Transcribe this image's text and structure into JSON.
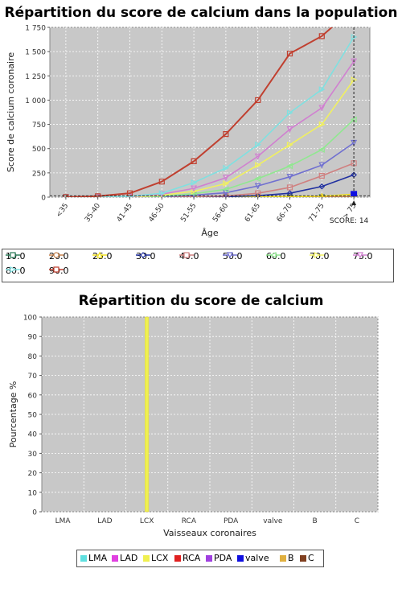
{
  "charts": {
    "distribution": {
      "title": "Répartition du score de calcium dans la population",
      "marker_label": "SCORE: 14"
    },
    "vessels": {
      "title": "Répartition du score de calcium"
    }
  },
  "chart_data": [
    {
      "type": "line",
      "title": "Répartition du score de calcium dans la population",
      "xlabel": "Âge",
      "ylabel": "Score de calcium coronaire",
      "categories": [
        "<35",
        "35-40",
        "41-45",
        "46-50",
        "51-55",
        "56-60",
        "61-65",
        "66-70",
        "71-75",
        "> 75"
      ],
      "ylim": [
        0,
        1750
      ],
      "yticks": [
        0,
        250,
        500,
        750,
        1000,
        1250,
        1500,
        1750
      ],
      "ytick_labels": [
        "0",
        "250",
        "500",
        "750",
        "1 000",
        "1 250",
        "1 500",
        "1 750"
      ],
      "grid": true,
      "legend_position": "bottom",
      "series": [
        {
          "name": "10.0",
          "color": "#2e7d5b",
          "marker": "square",
          "values": [
            0,
            0,
            0,
            0,
            0,
            0,
            0,
            0,
            0,
            0
          ]
        },
        {
          "name": "20.0",
          "color": "#c8844e",
          "marker": "circle",
          "values": [
            0,
            0,
            0,
            0,
            0,
            0,
            0,
            0,
            2,
            5
          ]
        },
        {
          "name": "25.0",
          "color": "#f0e020",
          "marker": "triangle-up",
          "values": [
            0,
            0,
            0,
            0,
            0,
            0,
            2,
            5,
            10,
            30
          ]
        },
        {
          "name": "30.0",
          "color": "#2030a0",
          "marker": "diamond",
          "values": [
            0,
            0,
            0,
            0,
            2,
            5,
            15,
            40,
            110,
            230
          ]
        },
        {
          "name": "40.0",
          "color": "#d08080",
          "marker": "square",
          "values": [
            0,
            0,
            0,
            2,
            5,
            12,
            40,
            100,
            220,
            350
          ]
        },
        {
          "name": "50.0",
          "color": "#7070d0",
          "marker": "triangle-down",
          "values": [
            0,
            0,
            0,
            5,
            20,
            45,
            115,
            210,
            330,
            560
          ]
        },
        {
          "name": "60.0",
          "color": "#90e890",
          "marker": "triangle-left",
          "values": [
            0,
            0,
            0,
            10,
            35,
            80,
            190,
            320,
            490,
            800
          ]
        },
        {
          "name": "70.0",
          "color": "#f0f060",
          "marker": "triangle-right",
          "values": [
            0,
            0,
            0,
            20,
            60,
            140,
            330,
            540,
            750,
            1210
          ]
        },
        {
          "name": "75.0",
          "color": "#d080d0",
          "marker": "triangle-down",
          "values": [
            0,
            0,
            5,
            30,
            90,
            200,
            420,
            700,
            920,
            1400
          ]
        },
        {
          "name": "80.0",
          "color": "#80e0e0",
          "marker": "triangle-right",
          "values": [
            0,
            0,
            8,
            40,
            150,
            300,
            540,
            870,
            1110,
            1650
          ]
        },
        {
          "name": "90.0",
          "color": "#c04030",
          "marker": "square",
          "values": [
            0,
            10,
            40,
            160,
            370,
            650,
            1000,
            1480,
            1660,
            1950
          ]
        }
      ],
      "annotations": [
        {
          "label": "SCORE: 14",
          "x": "> 75",
          "y": 14
        }
      ]
    },
    {
      "type": "bar",
      "title": "Répartition du score de calcium",
      "xlabel": "Vaisseaux coronaires",
      "ylabel": "Pourcentage %",
      "categories": [
        "LMA",
        "LAD",
        "LCX",
        "RCA",
        "PDA",
        "valve",
        "B",
        "C"
      ],
      "ylim": [
        0,
        100
      ],
      "yticks": [
        0,
        10,
        20,
        30,
        40,
        50,
        60,
        70,
        80,
        90,
        100
      ],
      "grid": true,
      "legend_position": "bottom",
      "series": [
        {
          "name": "LMA",
          "color": "#60e0e0",
          "values": [
            0,
            0,
            0,
            0,
            0,
            0,
            0,
            0
          ]
        },
        {
          "name": "LAD",
          "color": "#e040e0",
          "values": [
            0,
            0,
            0,
            0,
            0,
            0,
            0,
            0
          ]
        },
        {
          "name": "LCX",
          "color": "#f0f050",
          "values": [
            0,
            0,
            100,
            0,
            0,
            0,
            0,
            0
          ]
        },
        {
          "name": "RCA",
          "color": "#e02020",
          "values": [
            0,
            0,
            0,
            0,
            0,
            0,
            0,
            0
          ]
        },
        {
          "name": "PDA",
          "color": "#a040e0",
          "values": [
            0,
            0,
            0,
            0,
            0,
            0,
            0,
            0
          ]
        },
        {
          "name": "valve",
          "color": "#1010e0",
          "values": [
            0,
            0,
            0,
            0,
            0,
            0,
            0,
            0
          ]
        },
        {
          "name": "B",
          "color": "#e0b040",
          "values": [
            0,
            0,
            0,
            0,
            0,
            0,
            0,
            0
          ]
        },
        {
          "name": "C",
          "color": "#804020",
          "values": [
            0,
            0,
            0,
            0,
            0,
            0,
            0,
            0
          ]
        }
      ]
    }
  ]
}
